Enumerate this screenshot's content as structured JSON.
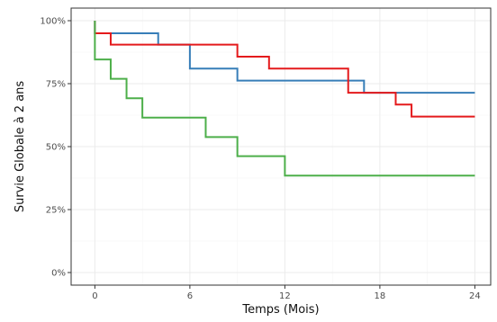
{
  "chart_data": {
    "type": "line",
    "step": true,
    "title": "",
    "xlabel": "Temps (Mois)",
    "ylabel": "Survie Globale à 2 ans",
    "xlim": [
      -1.5,
      25
    ],
    "ylim": [
      -0.05,
      1.05
    ],
    "x_ticks": [
      0,
      6,
      12,
      18,
      24
    ],
    "x_tick_labels": [
      "0",
      "6",
      "12",
      "18",
      "24"
    ],
    "y_ticks": [
      0,
      0.25,
      0.5,
      0.75,
      1
    ],
    "y_tick_labels": [
      "0%",
      "25%",
      "50%",
      "75%",
      "100%"
    ],
    "grid": true,
    "legend": "none",
    "series": [
      {
        "color": "#377eb8",
        "x": [
          0,
          4,
          6,
          9,
          17,
          24
        ],
        "y": [
          0.95,
          0.905,
          0.81,
          0.762,
          0.714,
          0.714
        ]
      },
      {
        "color": "#e41a1c",
        "x": [
          0,
          1,
          9,
          11,
          16,
          19,
          20,
          24
        ],
        "y": [
          0.95,
          0.905,
          0.857,
          0.81,
          0.714,
          0.667,
          0.619,
          0.619
        ]
      },
      {
        "color": "#4daf4a",
        "x": [
          0,
          1,
          2,
          3,
          7,
          9,
          12,
          24
        ],
        "y": [
          0.846,
          0.769,
          0.692,
          0.615,
          0.538,
          0.462,
          0.385,
          0.385
        ]
      }
    ]
  }
}
